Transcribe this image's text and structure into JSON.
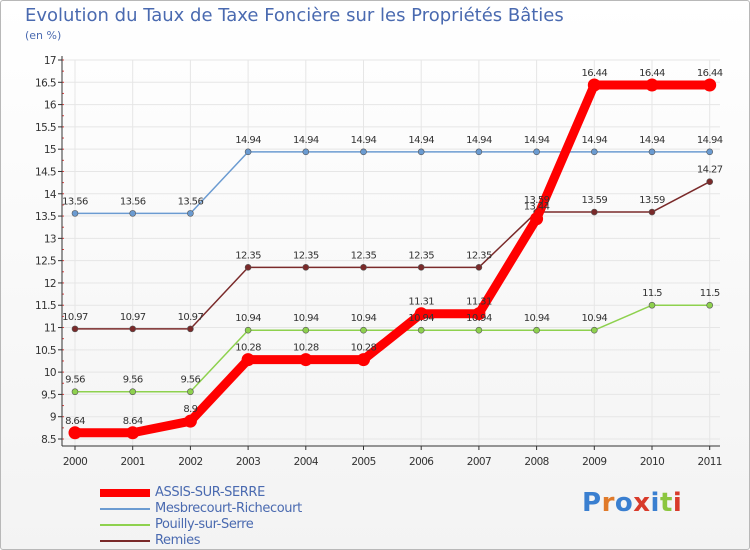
{
  "page": {
    "title": "Evolution du Taux de Taxe Foncière sur les Propriétés Bâties",
    "subtitle": "(en %)",
    "logo_text": "Proxiti"
  },
  "colors": {
    "axis": "#333333",
    "grid": "#e6e6e6",
    "text": "#4a6ab0",
    "logo": [
      "#3a7fd0",
      "#e07a2a",
      "#3a7fd0",
      "#d83a2a",
      "#3a7fd0",
      "#8cc63f",
      "#d83a2a"
    ]
  },
  "chart_data": {
    "type": "line",
    "title": "Evolution du Taux de Taxe Foncière sur les Propriétés Bâties",
    "ylabel": "(en %)",
    "xlabel": "",
    "x": [
      "2000",
      "2001",
      "2002",
      "2003",
      "2004",
      "2005",
      "2006",
      "2007",
      "2008",
      "2009",
      "2010",
      "2011"
    ],
    "ylim": [
      8.5,
      17
    ],
    "yticks": [
      "8.5",
      "9",
      "9.5",
      "10",
      "10.5",
      "11",
      "11.5",
      "12",
      "12.5",
      "13",
      "13.5",
      "14",
      "14.5",
      "15",
      "15.5",
      "16",
      "16.5",
      "17"
    ],
    "grid": true,
    "series": [
      {
        "name": "ASSIS-SUR-SERRE",
        "color": "#ff0000",
        "values": [
          8.64,
          8.64,
          8.9,
          10.28,
          10.28,
          10.28,
          11.31,
          11.31,
          13.44,
          16.44,
          16.44,
          16.44
        ],
        "labels": [
          "8.64",
          "8.64",
          "8.9",
          "10.28",
          "10.28",
          "10.28",
          "11.31",
          "11.31",
          "13.44",
          "16.44",
          "16.44",
          "16.44"
        ]
      },
      {
        "name": "Mesbrecourt-Richecourt",
        "color": "#6b9bd1",
        "values": [
          13.56,
          13.56,
          13.56,
          14.94,
          14.94,
          14.94,
          14.94,
          14.94,
          14.94,
          14.94,
          14.94,
          14.94
        ],
        "labels": [
          "13.56",
          "13.56",
          "13.56",
          "14.94",
          "14.94",
          "14.94",
          "14.94",
          "14.94",
          "14.94",
          "14.94",
          "14.94",
          "14.94"
        ]
      },
      {
        "name": "Pouilly-sur-Serre",
        "color": "#8ed14e",
        "values": [
          9.56,
          9.56,
          9.56,
          10.94,
          10.94,
          10.94,
          10.94,
          10.94,
          10.94,
          10.94,
          11.5,
          11.5
        ],
        "labels": [
          "9.56",
          "9.56",
          "9.56",
          "10.94",
          "10.94",
          "10.94",
          "10.94",
          "10.94",
          "10.94",
          "10.94",
          "11.5",
          "11.5"
        ]
      },
      {
        "name": "Remies",
        "color": "#7a2a2a",
        "values": [
          10.97,
          10.97,
          10.97,
          12.35,
          12.35,
          12.35,
          12.35,
          12.35,
          13.59,
          13.59,
          13.59,
          14.27
        ],
        "labels": [
          "10.97",
          "10.97",
          "10.97",
          "12.35",
          "12.35",
          "12.35",
          "12.35",
          "12.35",
          "13.59",
          "13.59",
          "13.59",
          "14.27"
        ]
      }
    ]
  }
}
